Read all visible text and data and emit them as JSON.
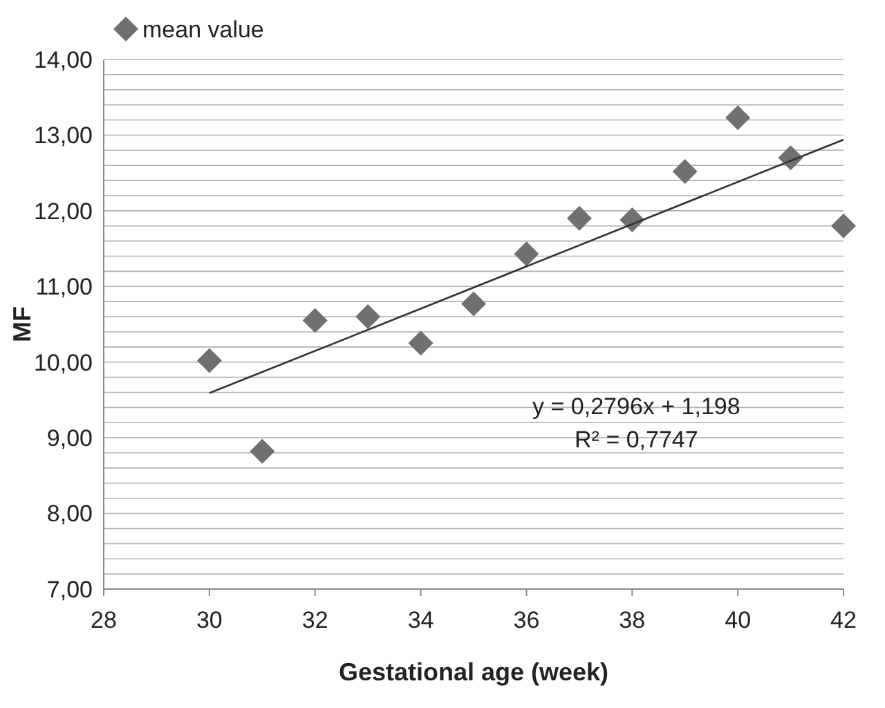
{
  "chart_data": {
    "type": "scatter",
    "xlabel": "Gestational age (week)",
    "ylabel": "MF",
    "xlim": [
      28,
      42
    ],
    "xticks": [
      28,
      30,
      32,
      34,
      36,
      38,
      40,
      42
    ],
    "ylim": [
      7,
      14
    ],
    "yticks": [
      {
        "value": 7,
        "label": "7,00"
      },
      {
        "value": 7.2,
        "label": null
      },
      {
        "value": 7.4,
        "label": null
      },
      {
        "value": 7.6,
        "label": null
      },
      {
        "value": 7.8,
        "label": null
      },
      {
        "value": 8,
        "label": "8,00"
      },
      {
        "value": 8.2,
        "label": null
      },
      {
        "value": 8.4,
        "label": null
      },
      {
        "value": 8.6,
        "label": null
      },
      {
        "value": 8.8,
        "label": null
      },
      {
        "value": 9,
        "label": "9,00"
      },
      {
        "value": 9.2,
        "label": null
      },
      {
        "value": 9.4,
        "label": null
      },
      {
        "value": 9.6,
        "label": null
      },
      {
        "value": 9.8,
        "label": null
      },
      {
        "value": 10,
        "label": "10,00"
      },
      {
        "value": 10.2,
        "label": null
      },
      {
        "value": 10.4,
        "label": null
      },
      {
        "value": 10.6,
        "label": null
      },
      {
        "value": 10.8,
        "label": null
      },
      {
        "value": 11,
        "label": "11,00"
      },
      {
        "value": 11.2,
        "label": null
      },
      {
        "value": 11.4,
        "label": null
      },
      {
        "value": 11.6,
        "label": null
      },
      {
        "value": 11.8,
        "label": null
      },
      {
        "value": 12,
        "label": "12,00"
      },
      {
        "value": 12.2,
        "label": null
      },
      {
        "value": 12.4,
        "label": null
      },
      {
        "value": 12.6,
        "label": null
      },
      {
        "value": 12.8,
        "label": null
      },
      {
        "value": 13,
        "label": "13,00"
      },
      {
        "value": 13.2,
        "label": null
      },
      {
        "value": 13.4,
        "label": null
      },
      {
        "value": 13.6,
        "label": null
      },
      {
        "value": 13.8,
        "label": null
      },
      {
        "value": 14,
        "label": "14,00"
      }
    ],
    "grid": "y",
    "legend": "top left",
    "marker": "diamond",
    "series": [
      {
        "name": "mean value",
        "color": "#707070",
        "x": [
          30,
          31,
          32,
          33,
          34,
          35,
          36,
          37,
          38,
          39,
          40,
          41,
          42
        ],
        "values": [
          10.02,
          8.82,
          10.55,
          10.6,
          10.25,
          10.77,
          11.43,
          11.9,
          11.88,
          12.52,
          13.23,
          12.7,
          11.8
        ]
      },
      {
        "type": "line",
        "color": "#333333",
        "marker": "none",
        "x": [
          30,
          42
        ],
        "values": [
          9.59,
          12.94
        ]
      }
    ],
    "annotations": [
      "y = 0,2796x + 1,198",
      "R² = 0,7747"
    ]
  }
}
